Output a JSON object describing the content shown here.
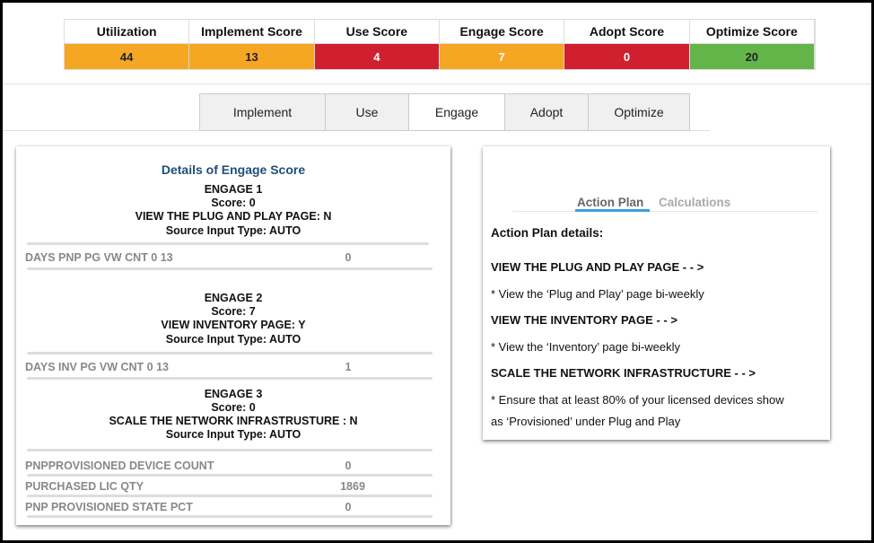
{
  "scores": [
    {
      "label": "Utilization",
      "value": "44",
      "color": "#f5a623",
      "text": "#222"
    },
    {
      "label": "Implement Score",
      "value": "13",
      "color": "#f5a623",
      "text": "#222"
    },
    {
      "label": "Use Score",
      "value": "4",
      "color": "#d0202f",
      "text": "#fff"
    },
    {
      "label": "Engage Score",
      "value": "7",
      "color": "#f5a623",
      "text": "#fff"
    },
    {
      "label": "Adopt Score",
      "value": "0",
      "color": "#d0202f",
      "text": "#fff"
    },
    {
      "label": "Optimize Score",
      "value": "20",
      "color": "#63b54a",
      "text": "#222"
    }
  ],
  "tabs": [
    {
      "label": "Implement"
    },
    {
      "label": "Use"
    },
    {
      "label": "Engage",
      "active": true
    },
    {
      "label": "Adopt"
    },
    {
      "label": "Optimize"
    }
  ],
  "details": {
    "title": "Details of Engage Score",
    "sections": [
      {
        "name": "ENGAGE 1",
        "score": "Score: 0",
        "criterion": "VIEW THE PLUG AND PLAY PAGE: N",
        "source": "Source Input Type: AUTO",
        "rows": [
          {
            "label": "DAYS PNP PG VW CNT 0 13",
            "value": "0"
          }
        ]
      },
      {
        "name": "ENGAGE 2",
        "score": "Score: 7",
        "criterion": "VIEW INVENTORY PAGE: Y",
        "source": "Source Input Type: AUTO",
        "rows": [
          {
            "label": "DAYS INV PG VW CNT 0 13",
            "value": "1"
          }
        ]
      },
      {
        "name": "ENGAGE 3",
        "score": "Score: 0",
        "criterion": "SCALE THE NETWORK INFRASTRUSTURE : N",
        "source": "Source Input Type: AUTO",
        "rows": [
          {
            "label": "PNPPROVISIONED DEVICE COUNT",
            "value": "0"
          },
          {
            "label": "PURCHASED LIC QTY",
            "value": "1869"
          },
          {
            "label": "PNP PROVISIONED STATE PCT",
            "value": "0"
          }
        ]
      }
    ]
  },
  "action": {
    "tabs": [
      {
        "label": "Action Plan",
        "active": true
      },
      {
        "label": "Calculations"
      }
    ],
    "heading": "Action Plan details:",
    "items": [
      {
        "title": "VIEW THE PLUG AND PLAY PAGE - - >",
        "lines": [
          "* View the ‘Plug and Play’ page bi-weekly"
        ]
      },
      {
        "title": "VIEW THE INVENTORY PAGE - - >",
        "lines": [
          "* View the ‘Inventory’ page bi-weekly"
        ]
      },
      {
        "title": "SCALE THE NETWORK INFRASTRUCTURE - - >",
        "lines": [
          "* Ensure that at least 80% of your licensed devices show",
          "as ‘Provisioned’ under Plug and Play"
        ]
      }
    ],
    "accent": "#3aa0d8"
  }
}
